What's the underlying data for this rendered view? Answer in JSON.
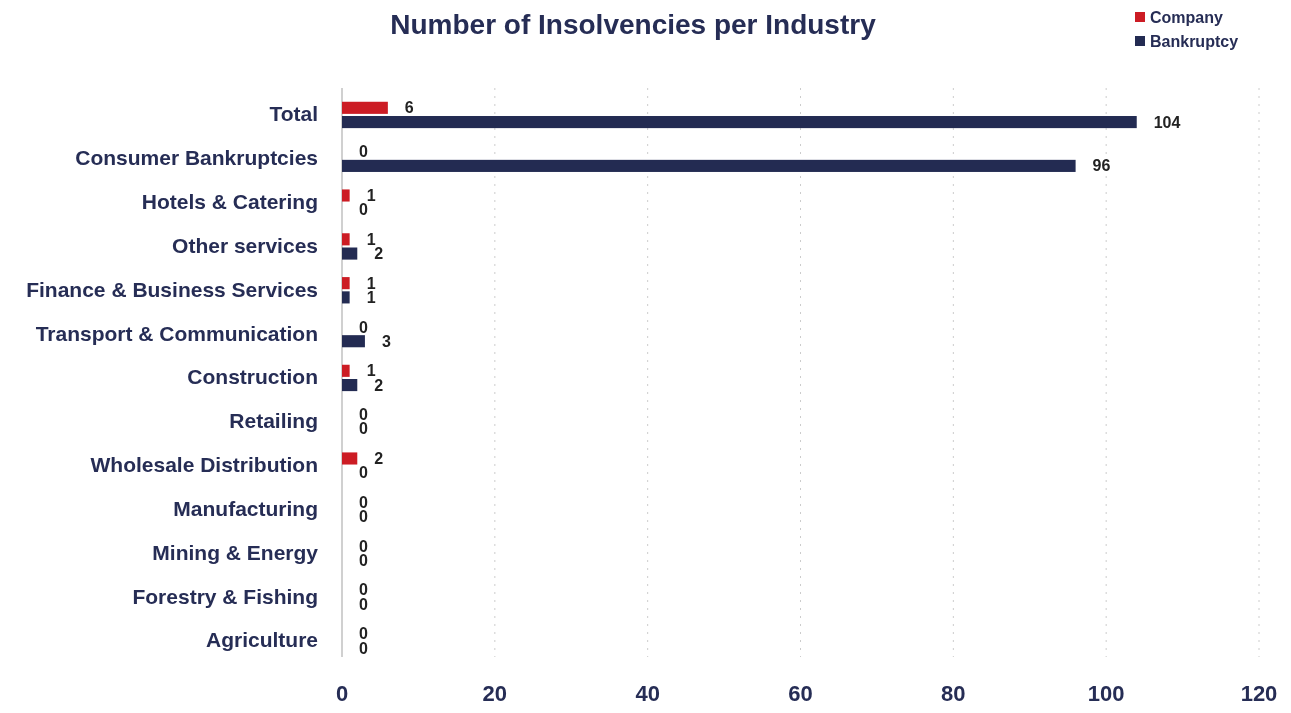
{
  "chart_data": {
    "type": "bar",
    "orientation": "horizontal",
    "title": "Number of Insolvencies per Industry",
    "categories": [
      "Total",
      "Consumer Bankruptcies",
      "Hotels & Catering",
      "Other services",
      "Finance & Business Services",
      "Transport & Communication",
      "Construction",
      "Retailing",
      "Wholesale Distribution",
      "Manufacturing",
      "Mining & Energy",
      "Forestry & Fishing",
      "Agriculture"
    ],
    "series": [
      {
        "name": "Company",
        "color": "#cc1c24",
        "values": [
          6,
          0,
          1,
          1,
          1,
          0,
          1,
          0,
          2,
          0,
          0,
          0,
          0
        ]
      },
      {
        "name": "Bankruptcy",
        "color": "#232b52",
        "values": [
          104,
          96,
          0,
          2,
          1,
          3,
          2,
          0,
          0,
          0,
          0,
          0,
          0
        ]
      }
    ],
    "xlim": [
      0,
      120
    ],
    "xticks": [
      0,
      20,
      40,
      60,
      80,
      100,
      120
    ],
    "grid": "x",
    "legend": "top right",
    "data_labels": true
  }
}
